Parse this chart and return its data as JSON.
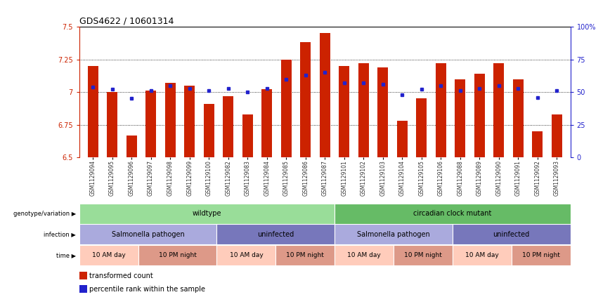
{
  "title": "GDS4622 / 10601314",
  "samples": [
    "GSM1129094",
    "GSM1129095",
    "GSM1129096",
    "GSM1129097",
    "GSM1129098",
    "GSM1129099",
    "GSM1129100",
    "GSM1129082",
    "GSM1129083",
    "GSM1129084",
    "GSM1129085",
    "GSM1129086",
    "GSM1129087",
    "GSM1129101",
    "GSM1129102",
    "GSM1129103",
    "GSM1129104",
    "GSM1129105",
    "GSM1129106",
    "GSM1129088",
    "GSM1129089",
    "GSM1129090",
    "GSM1129091",
    "GSM1129092",
    "GSM1129093"
  ],
  "red_values": [
    7.2,
    7.0,
    6.67,
    7.01,
    7.07,
    7.05,
    6.91,
    6.97,
    6.83,
    7.02,
    7.25,
    7.38,
    7.45,
    7.2,
    7.22,
    7.19,
    6.78,
    6.95,
    7.22,
    7.1,
    7.14,
    7.22,
    7.1,
    6.7,
    6.83
  ],
  "blue_values": [
    7.04,
    7.02,
    6.95,
    7.01,
    7.05,
    7.03,
    7.01,
    7.03,
    7.0,
    7.03,
    7.1,
    7.13,
    7.15,
    7.07,
    7.07,
    7.06,
    6.98,
    7.02,
    7.05,
    7.01,
    7.03,
    7.05,
    7.03,
    6.96,
    7.01
  ],
  "ylim": [
    6.5,
    7.5
  ],
  "yticks": [
    6.5,
    6.75,
    7.0,
    7.25,
    7.5
  ],
  "ytick_labels": [
    "6.5",
    "6.75",
    "7",
    "7.25",
    "7.5"
  ],
  "bar_color": "#cc2200",
  "dot_color": "#2222cc",
  "background_color": "#ffffff",
  "label_bg": "#dddddd",
  "genotype_groups": [
    {
      "label": "wildtype",
      "start": 0,
      "end": 13,
      "color": "#99dd99"
    },
    {
      "label": "circadian clock mutant",
      "start": 13,
      "end": 25,
      "color": "#66bb66"
    }
  ],
  "infection_groups": [
    {
      "label": "Salmonella pathogen",
      "start": 0,
      "end": 7,
      "color": "#aaaadd"
    },
    {
      "label": "uninfected",
      "start": 7,
      "end": 13,
      "color": "#7777bb"
    },
    {
      "label": "Salmonella pathogen",
      "start": 13,
      "end": 19,
      "color": "#aaaadd"
    },
    {
      "label": "uninfected",
      "start": 19,
      "end": 25,
      "color": "#7777bb"
    }
  ],
  "time_groups": [
    {
      "label": "10 AM day",
      "start": 0,
      "end": 3,
      "color": "#ffccbb"
    },
    {
      "label": "10 PM night",
      "start": 3,
      "end": 7,
      "color": "#dd9988"
    },
    {
      "label": "10 AM day",
      "start": 7,
      "end": 10,
      "color": "#ffccbb"
    },
    {
      "label": "10 PM night",
      "start": 10,
      "end": 13,
      "color": "#dd9988"
    },
    {
      "label": "10 AM day",
      "start": 13,
      "end": 16,
      "color": "#ffccbb"
    },
    {
      "label": "10 PM night",
      "start": 16,
      "end": 19,
      "color": "#dd9988"
    },
    {
      "label": "10 AM day",
      "start": 19,
      "end": 22,
      "color": "#ffccbb"
    },
    {
      "label": "10 PM night",
      "start": 22,
      "end": 25,
      "color": "#dd9988"
    }
  ],
  "legend_items": [
    {
      "label": "transformed count",
      "color": "#cc2200"
    },
    {
      "label": "percentile rank within the sample",
      "color": "#2222cc"
    }
  ]
}
